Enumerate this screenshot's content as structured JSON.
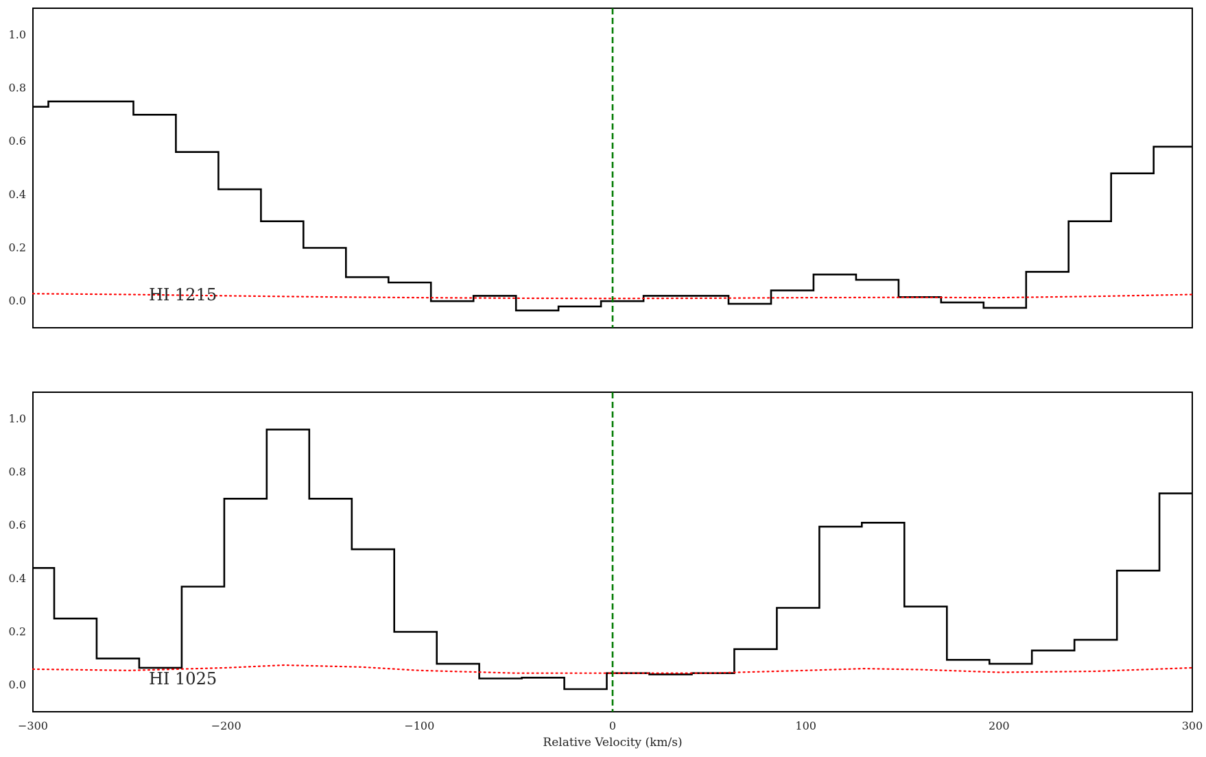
{
  "chart_data": [
    {
      "type": "line",
      "style": "step",
      "panel_label": "HI 1215",
      "xlim": [
        -300,
        300
      ],
      "ylim": [
        -0.1,
        1.1
      ],
      "yticks": [
        "0.0",
        "0.2",
        "0.4",
        "0.6",
        "0.8",
        "1.0"
      ],
      "x_ticks_shown": false,
      "reference_line": {
        "x": 0,
        "color": "#007a00",
        "style": "dashed"
      },
      "series": [
        {
          "role": "flux",
          "color": "#000000",
          "x": [
            -300,
            -292,
            -248,
            -226,
            -204,
            -182,
            -160,
            -138,
            -116,
            -94,
            -72,
            -50,
            -28,
            -6,
            16,
            38,
            60,
            82,
            104,
            126,
            148,
            170,
            192,
            214,
            236,
            258,
            280
          ],
          "values": [
            0.73,
            0.75,
            0.7,
            0.56,
            0.42,
            0.3,
            0.2,
            0.09,
            0.07,
            0.0,
            0.02,
            -0.035,
            -0.02,
            0.0,
            0.02,
            0.02,
            -0.01,
            0.04,
            0.1,
            0.08,
            0.015,
            -0.005,
            -0.025,
            0.11,
            0.3,
            0.48,
            0.58
          ]
        },
        {
          "role": "error",
          "color": "#ff0000",
          "style": "dotted",
          "x": [
            -300,
            -250,
            -200,
            -150,
            -100,
            -50,
            0,
            50,
            100,
            150,
            200,
            250,
            300
          ],
          "values": [
            0.028,
            0.025,
            0.02,
            0.016,
            0.013,
            0.011,
            0.01,
            0.011,
            0.013,
            0.014,
            0.013,
            0.018,
            0.025
          ]
        }
      ]
    },
    {
      "type": "line",
      "style": "step",
      "panel_label": "HI 1025",
      "xlim": [
        -300,
        300
      ],
      "ylim": [
        -0.1,
        1.1
      ],
      "xlabel": "Relative Velocity (km/s)",
      "xticks": [
        "−300",
        "−200",
        "−100",
        "0",
        "100",
        "200",
        "300"
      ],
      "yticks": [
        "0.0",
        "0.2",
        "0.4",
        "0.6",
        "0.8",
        "1.0"
      ],
      "reference_line": {
        "x": 0,
        "color": "#007a00",
        "style": "dashed"
      },
      "series": [
        {
          "role": "flux",
          "color": "#000000",
          "x": [
            -300,
            -289,
            -267,
            -245,
            -223,
            -201,
            -179,
            -157,
            -135,
            -113,
            -91,
            -69,
            -47,
            -25,
            -3,
            19,
            41,
            63,
            85,
            107,
            129,
            151,
            173,
            195,
            217,
            239,
            261,
            283
          ],
          "values": [
            0.44,
            0.25,
            0.1,
            0.065,
            0.37,
            0.7,
            0.96,
            0.7,
            0.51,
            0.2,
            0.08,
            0.025,
            0.028,
            -0.015,
            0.045,
            0.04,
            0.045,
            0.135,
            0.29,
            0.595,
            0.61,
            0.295,
            0.095,
            0.08,
            0.13,
            0.17,
            0.43,
            0.72
          ]
        },
        {
          "role": "error",
          "color": "#ff0000",
          "style": "dotted",
          "x": [
            -300,
            -250,
            -200,
            -170,
            -130,
            -100,
            -50,
            0,
            50,
            100,
            130,
            160,
            200,
            250,
            300
          ],
          "values": [
            0.06,
            0.055,
            0.065,
            0.075,
            0.068,
            0.055,
            0.045,
            0.045,
            0.045,
            0.055,
            0.062,
            0.058,
            0.048,
            0.052,
            0.065
          ]
        }
      ]
    }
  ]
}
